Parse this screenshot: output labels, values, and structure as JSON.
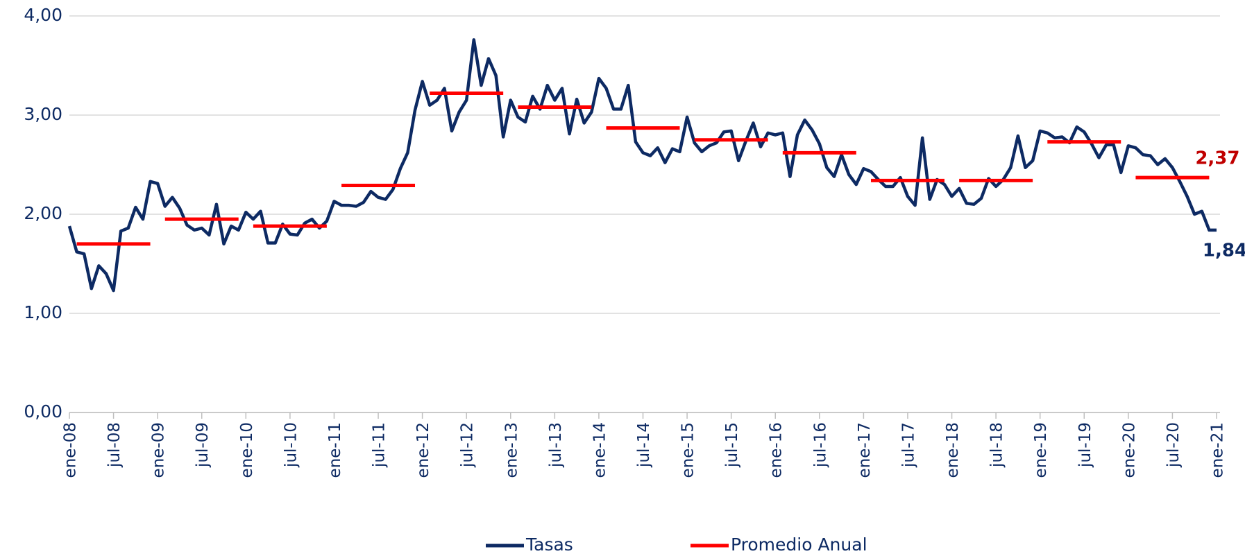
{
  "chart_data": {
    "type": "line",
    "categories": [
      "ene-08",
      null,
      null,
      null,
      null,
      null,
      "jul-08",
      null,
      null,
      null,
      null,
      null,
      "ene-09",
      null,
      null,
      null,
      null,
      null,
      "jul-09",
      null,
      null,
      null,
      null,
      null,
      "ene-10",
      null,
      null,
      null,
      null,
      null,
      "jul-10",
      null,
      null,
      null,
      null,
      null,
      "ene-11",
      null,
      null,
      null,
      null,
      null,
      "jul-11",
      null,
      null,
      null,
      null,
      null,
      "ene-12",
      null,
      null,
      null,
      null,
      null,
      "jul-12",
      null,
      null,
      null,
      null,
      null,
      "ene-13",
      null,
      null,
      null,
      null,
      null,
      "jul-13",
      null,
      null,
      null,
      null,
      null,
      "ene-14",
      null,
      null,
      null,
      null,
      null,
      "jul-14",
      null,
      null,
      null,
      null,
      null,
      "ene-15",
      null,
      null,
      null,
      null,
      null,
      "jul-15",
      null,
      null,
      null,
      null,
      null,
      "ene-16",
      null,
      null,
      null,
      null,
      null,
      "jul-16",
      null,
      null,
      null,
      null,
      null,
      "ene-17",
      null,
      null,
      null,
      null,
      null,
      "jul-17",
      null,
      null,
      null,
      null,
      null,
      "ene-18",
      null,
      null,
      null,
      null,
      null,
      "jul-18",
      null,
      null,
      null,
      null,
      null,
      "ene-19",
      null,
      null,
      null,
      null,
      null,
      "jul-19",
      null,
      null,
      null,
      null,
      null,
      "ene-20",
      null,
      null,
      null,
      null,
      null,
      "jul-20",
      null,
      null,
      null,
      null,
      null,
      "ene-21"
    ],
    "series": [
      {
        "name": "Tasas",
        "color": "#0d2a63",
        "values": [
          1.88,
          1.62,
          1.6,
          1.25,
          1.48,
          1.4,
          1.23,
          1.83,
          1.86,
          2.07,
          1.95,
          2.33,
          2.31,
          2.08,
          2.17,
          2.06,
          1.89,
          1.84,
          1.86,
          1.79,
          2.1,
          1.7,
          1.88,
          1.84,
          2.02,
          1.95,
          2.03,
          1.71,
          1.71,
          1.9,
          1.8,
          1.79,
          1.91,
          1.95,
          1.86,
          1.93,
          2.13,
          2.09,
          2.09,
          2.08,
          2.12,
          2.23,
          2.17,
          2.15,
          2.25,
          2.46,
          2.62,
          3.05,
          3.34,
          3.1,
          3.15,
          3.27,
          2.84,
          3.03,
          3.15,
          3.76,
          3.3,
          3.57,
          3.4,
          2.78,
          3.15,
          2.98,
          2.93,
          3.19,
          3.06,
          3.3,
          3.15,
          3.27,
          2.81,
          3.16,
          2.92,
          3.03,
          3.37,
          3.27,
          3.06,
          3.06,
          3.3,
          2.73,
          2.62,
          2.59,
          2.67,
          2.52,
          2.66,
          2.63,
          2.98,
          2.72,
          2.63,
          2.69,
          2.72,
          2.83,
          2.84,
          2.54,
          2.74,
          2.92,
          2.68,
          2.82,
          2.8,
          2.82,
          2.38,
          2.8,
          2.95,
          2.85,
          2.71,
          2.47,
          2.38,
          2.6,
          2.4,
          2.3,
          2.46,
          2.43,
          2.35,
          2.28,
          2.28,
          2.37,
          2.18,
          2.09,
          2.77,
          2.15,
          2.35,
          2.3,
          2.18,
          2.26,
          2.11,
          2.1,
          2.16,
          2.36,
          2.28,
          2.35,
          2.47,
          2.79,
          2.47,
          2.54,
          2.84,
          2.82,
          2.77,
          2.78,
          2.72,
          2.88,
          2.83,
          2.71,
          2.57,
          2.7,
          2.7,
          2.42,
          2.69,
          2.67,
          2.6,
          2.59,
          2.5,
          2.56,
          2.47,
          2.33,
          2.18,
          2.0,
          2.03,
          1.84,
          1.84
        ],
        "value_labels": [
          null,
          null,
          null,
          null,
          null,
          null,
          null,
          null,
          null,
          null,
          null,
          null,
          null,
          null,
          null,
          null,
          null,
          null,
          null,
          null,
          null,
          null,
          null,
          null,
          null,
          null,
          null,
          null,
          null,
          null,
          null,
          null,
          null,
          null,
          null,
          null,
          null,
          null,
          null,
          null,
          null,
          null,
          null,
          null,
          null,
          null,
          null,
          null,
          null,
          null,
          null,
          null,
          null,
          null,
          null,
          null,
          null,
          null,
          null,
          null,
          null,
          null,
          null,
          null,
          null,
          null,
          null,
          null,
          null,
          null,
          null,
          null,
          null,
          null,
          null,
          null,
          null,
          null,
          null,
          null,
          null,
          null,
          null,
          null,
          null,
          null,
          null,
          null,
          null,
          null,
          null,
          null,
          null,
          null,
          null,
          null,
          null,
          null,
          null,
          null,
          null,
          null,
          null,
          null,
          null,
          null,
          null,
          null,
          null,
          null,
          null,
          null,
          null,
          null,
          null,
          null,
          null,
          null,
          null,
          null,
          null,
          null,
          null,
          null,
          null,
          null,
          null,
          null,
          null,
          null,
          null,
          null,
          null,
          null,
          null,
          null,
          null,
          null,
          null,
          null,
          null,
          null,
          null,
          null,
          null,
          null,
          null,
          null,
          null,
          null,
          null,
          null,
          null,
          null,
          null,
          null,
          "1,84"
        ]
      },
      {
        "name": "Promedio Anual",
        "color": "#ff0000",
        "label_color": "#c00000",
        "values": [
          null,
          1.7,
          1.7,
          1.7,
          1.7,
          1.7,
          1.7,
          1.7,
          1.7,
          1.7,
          1.7,
          1.7,
          null,
          1.95,
          1.95,
          1.95,
          1.95,
          1.95,
          1.95,
          1.95,
          1.95,
          1.95,
          1.95,
          1.95,
          null,
          1.88,
          1.88,
          1.88,
          1.88,
          1.88,
          1.88,
          1.88,
          1.88,
          1.88,
          1.88,
          1.88,
          null,
          2.29,
          2.29,
          2.29,
          2.29,
          2.29,
          2.29,
          2.29,
          2.29,
          2.29,
          2.29,
          2.29,
          null,
          3.22,
          3.22,
          3.22,
          3.22,
          3.22,
          3.22,
          3.22,
          3.22,
          3.22,
          3.22,
          3.22,
          null,
          3.08,
          3.08,
          3.08,
          3.08,
          3.08,
          3.08,
          3.08,
          3.08,
          3.08,
          3.08,
          3.08,
          null,
          2.87,
          2.87,
          2.87,
          2.87,
          2.87,
          2.87,
          2.87,
          2.87,
          2.87,
          2.87,
          2.87,
          null,
          2.75,
          2.75,
          2.75,
          2.75,
          2.75,
          2.75,
          2.75,
          2.75,
          2.75,
          2.75,
          2.75,
          null,
          2.62,
          2.62,
          2.62,
          2.62,
          2.62,
          2.62,
          2.62,
          2.62,
          2.62,
          2.62,
          2.62,
          null,
          2.34,
          2.34,
          2.34,
          2.34,
          2.34,
          2.34,
          2.34,
          2.34,
          2.34,
          2.34,
          2.34,
          null,
          2.34,
          2.34,
          2.34,
          2.34,
          2.34,
          2.34,
          2.34,
          2.34,
          2.34,
          2.34,
          2.34,
          null,
          2.73,
          2.73,
          2.73,
          2.73,
          2.73,
          2.73,
          2.73,
          2.73,
          2.73,
          2.73,
          2.73,
          null,
          2.37,
          2.37,
          2.37,
          2.37,
          2.37,
          2.37,
          2.37,
          2.37,
          2.37,
          2.37,
          2.37,
          null
        ],
        "value_labels": [
          null,
          null,
          null,
          null,
          null,
          null,
          null,
          null,
          null,
          null,
          null,
          null,
          null,
          null,
          null,
          null,
          null,
          null,
          null,
          null,
          null,
          null,
          null,
          null,
          null,
          null,
          null,
          null,
          null,
          null,
          null,
          null,
          null,
          null,
          null,
          null,
          null,
          null,
          null,
          null,
          null,
          null,
          null,
          null,
          null,
          null,
          null,
          null,
          null,
          null,
          null,
          null,
          null,
          null,
          null,
          null,
          null,
          null,
          null,
          null,
          null,
          null,
          null,
          null,
          null,
          null,
          null,
          null,
          null,
          null,
          null,
          null,
          null,
          null,
          null,
          null,
          null,
          null,
          null,
          null,
          null,
          null,
          null,
          null,
          null,
          null,
          null,
          null,
          null,
          null,
          null,
          null,
          null,
          null,
          null,
          null,
          null,
          null,
          null,
          null,
          null,
          null,
          null,
          null,
          null,
          null,
          null,
          null,
          null,
          null,
          null,
          null,
          null,
          null,
          null,
          null,
          null,
          null,
          null,
          null,
          null,
          null,
          null,
          null,
          null,
          null,
          null,
          null,
          null,
          null,
          null,
          null,
          null,
          null,
          null,
          null,
          null,
          null,
          null,
          null,
          null,
          null,
          null,
          null,
          null,
          null,
          null,
          null,
          null,
          null,
          null,
          null,
          null,
          null,
          null,
          "2,37",
          null
        ]
      }
    ],
    "ylim": [
      0,
      4
    ],
    "yticks": [
      {
        "value": 0,
        "label": "0,00"
      },
      {
        "value": 1,
        "label": "1,00"
      },
      {
        "value": 2,
        "label": "2,00"
      },
      {
        "value": 3,
        "label": "3,00"
      },
      {
        "value": 4,
        "label": "4,00"
      }
    ],
    "grid": true,
    "legend": "bottom"
  }
}
